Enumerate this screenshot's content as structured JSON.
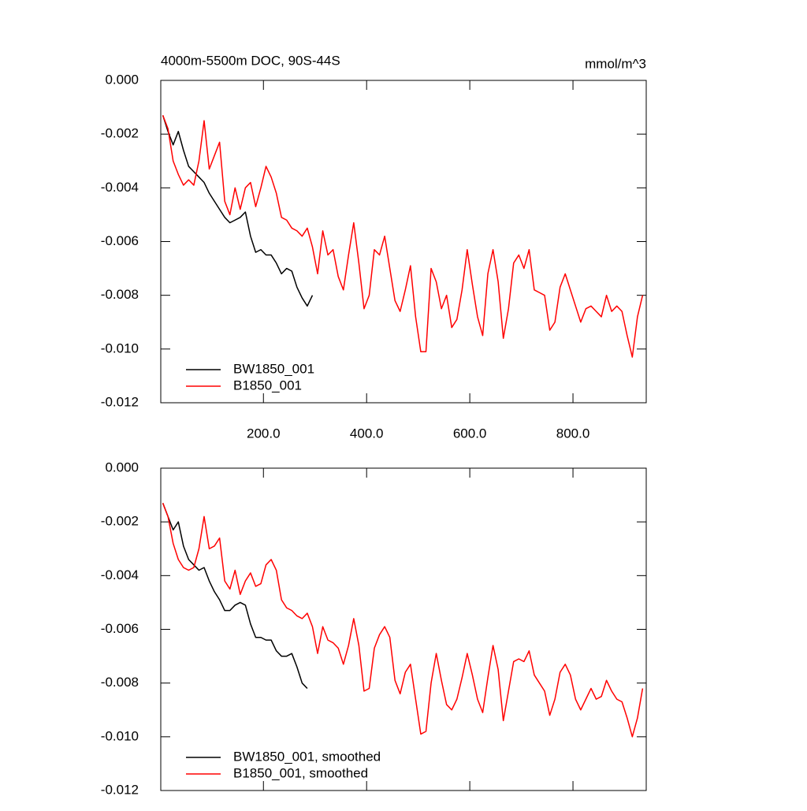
{
  "chart_data": [
    {
      "type": "line",
      "title": "4000m-5500m DOC, 90S-44S",
      "units": "mmol/m^3",
      "xlim": [
        1,
        942
      ],
      "ylim": [
        -0.012,
        0
      ],
      "xticks": [
        {
          "value": 200,
          "label": "200.0"
        },
        {
          "value": 400,
          "label": "400.0"
        },
        {
          "value": 600,
          "label": "600.0"
        },
        {
          "value": 800,
          "label": "800.0"
        }
      ],
      "yticks": [
        {
          "value": 0,
          "label": "0.000"
        },
        {
          "value": -0.002,
          "label": "-0.002"
        },
        {
          "value": -0.004,
          "label": "-0.004"
        },
        {
          "value": -0.006,
          "label": "-0.006"
        },
        {
          "value": -0.008,
          "label": "-0.008"
        },
        {
          "value": -0.01,
          "label": "-0.010"
        },
        {
          "value": -0.012,
          "label": "-0.012"
        }
      ],
      "legend": "lower-left",
      "x": [
        5,
        15,
        25,
        35,
        45,
        55,
        65,
        75,
        85,
        95,
        105,
        115,
        125,
        135,
        145,
        155,
        165,
        175,
        185,
        195,
        205,
        215,
        225,
        235,
        245,
        255,
        265,
        275,
        285,
        295,
        305,
        315,
        325,
        335,
        345,
        355,
        365,
        375,
        385,
        395,
        405,
        415,
        425,
        435,
        445,
        455,
        465,
        475,
        485,
        495,
        505,
        515,
        525,
        535,
        545,
        555,
        565,
        575,
        585,
        595,
        605,
        615,
        625,
        635,
        645,
        655,
        665,
        675,
        685,
        695,
        705,
        715,
        725,
        735,
        745,
        755,
        765,
        775,
        785,
        795,
        805,
        815,
        825,
        835,
        845,
        855,
        865,
        875,
        885,
        895,
        905,
        915,
        925,
        935
      ],
      "series": [
        {
          "name": "BW1850_001",
          "color": "#000000",
          "values": [
            -0.0013,
            -0.0019,
            -0.0024,
            -0.0019,
            -0.0026,
            -0.0032,
            -0.0034,
            -0.0036,
            -0.0038,
            -0.0042,
            -0.0045,
            -0.0048,
            -0.0051,
            -0.0053,
            -0.0052,
            -0.0051,
            -0.0049,
            -0.0058,
            -0.0064,
            -0.0063,
            -0.0065,
            -0.0065,
            -0.0068,
            -0.0072,
            -0.007,
            -0.0071,
            -0.0077,
            -0.0081,
            -0.0084,
            -0.008,
            null,
            null,
            null,
            null,
            null,
            null,
            null,
            null,
            null,
            null,
            null,
            null,
            null,
            null,
            null,
            null,
            null,
            null,
            null,
            null,
            null,
            null,
            null,
            null,
            null,
            null,
            null,
            null,
            null,
            null,
            null,
            null,
            null,
            null,
            null,
            null,
            null,
            null,
            null,
            null,
            null,
            null,
            null,
            null,
            null,
            null,
            null,
            null,
            null,
            null,
            null,
            null,
            null,
            null,
            null,
            null,
            null,
            null,
            null,
            null,
            null,
            null,
            null,
            null
          ]
        },
        {
          "name": "B1850_001",
          "color": "#ff0000",
          "values": [
            -0.0013,
            -0.0018,
            -0.003,
            -0.0035,
            -0.0039,
            -0.0037,
            -0.0039,
            -0.003,
            -0.0015,
            -0.0033,
            -0.0028,
            -0.0023,
            -0.0045,
            -0.005,
            -0.004,
            -0.0048,
            -0.004,
            -0.0038,
            -0.0047,
            -0.004,
            -0.0032,
            -0.0036,
            -0.0042,
            -0.0051,
            -0.0052,
            -0.0055,
            -0.0056,
            -0.0058,
            -0.0055,
            -0.0062,
            -0.0072,
            -0.0056,
            -0.0065,
            -0.0063,
            -0.0073,
            -0.0078,
            -0.0065,
            -0.0053,
            -0.0068,
            -0.0085,
            -0.008,
            -0.0063,
            -0.0065,
            -0.0058,
            -0.007,
            -0.0082,
            -0.0086,
            -0.0078,
            -0.0069,
            -0.0088,
            -0.0101,
            -0.0101,
            -0.007,
            -0.0075,
            -0.0085,
            -0.008,
            -0.0092,
            -0.0089,
            -0.0078,
            -0.0063,
            -0.0076,
            -0.0088,
            -0.0095,
            -0.0072,
            -0.0063,
            -0.0075,
            -0.0096,
            -0.0085,
            -0.0068,
            -0.0065,
            -0.007,
            -0.0063,
            -0.0078,
            -0.0079,
            -0.008,
            -0.0093,
            -0.009,
            -0.0077,
            -0.0072,
            -0.0078,
            -0.0084,
            -0.009,
            -0.0085,
            -0.0084,
            -0.0086,
            -0.0088,
            -0.008,
            -0.0086,
            -0.0084,
            -0.0086,
            -0.0095,
            -0.0103,
            -0.0088,
            -0.008
          ]
        }
      ]
    },
    {
      "type": "line",
      "xlim": [
        1,
        942
      ],
      "ylim": [
        -0.012,
        0
      ],
      "yticks": [
        {
          "value": 0,
          "label": "0.000"
        },
        {
          "value": -0.002,
          "label": "-0.002"
        },
        {
          "value": -0.004,
          "label": "-0.004"
        },
        {
          "value": -0.006,
          "label": "-0.006"
        },
        {
          "value": -0.008,
          "label": "-0.008"
        },
        {
          "value": -0.01,
          "label": "-0.010"
        },
        {
          "value": -0.012,
          "label": "-0.012"
        }
      ],
      "legend": "lower-left",
      "x": [
        5,
        15,
        25,
        35,
        45,
        55,
        65,
        75,
        85,
        95,
        105,
        115,
        125,
        135,
        145,
        155,
        165,
        175,
        185,
        195,
        205,
        215,
        225,
        235,
        245,
        255,
        265,
        275,
        285,
        295,
        305,
        315,
        325,
        335,
        345,
        355,
        365,
        375,
        385,
        395,
        405,
        415,
        425,
        435,
        445,
        455,
        465,
        475,
        485,
        495,
        505,
        515,
        525,
        535,
        545,
        555,
        565,
        575,
        585,
        595,
        605,
        615,
        625,
        635,
        645,
        655,
        665,
        675,
        685,
        695,
        705,
        715,
        725,
        735,
        745,
        755,
        765,
        775,
        785,
        795,
        805,
        815,
        825,
        835,
        845,
        855,
        865,
        875,
        885,
        895,
        905,
        915,
        925,
        935
      ],
      "series": [
        {
          "name": "BW1850_001, smoothed",
          "color": "#000000",
          "values": [
            -0.0013,
            -0.0018,
            -0.0023,
            -0.002,
            -0.0029,
            -0.0034,
            -0.0036,
            -0.0038,
            -0.0037,
            -0.0042,
            -0.0046,
            -0.0049,
            -0.0053,
            -0.0053,
            -0.0051,
            -0.005,
            -0.0051,
            -0.0058,
            -0.0063,
            -0.0063,
            -0.0064,
            -0.0064,
            -0.0068,
            -0.007,
            -0.007,
            -0.0069,
            -0.0074,
            -0.008,
            -0.0082,
            null,
            null,
            null,
            null,
            null,
            null,
            null,
            null,
            null,
            null,
            null,
            null,
            null,
            null,
            null,
            null,
            null,
            null,
            null,
            null,
            null,
            null,
            null,
            null,
            null,
            null,
            null,
            null,
            null,
            null,
            null,
            null,
            null,
            null,
            null,
            null,
            null,
            null,
            null,
            null,
            null,
            null,
            null,
            null,
            null,
            null,
            null,
            null,
            null,
            null,
            null,
            null,
            null,
            null,
            null,
            null,
            null,
            null,
            null,
            null,
            null,
            null,
            null,
            null,
            null
          ]
        },
        {
          "name": "B1850_001, smoothed",
          "color": "#ff0000",
          "values": [
            -0.0013,
            -0.0018,
            -0.0028,
            -0.0034,
            -0.0037,
            -0.0038,
            -0.0037,
            -0.003,
            -0.0018,
            -0.003,
            -0.0029,
            -0.0026,
            -0.0042,
            -0.0045,
            -0.0038,
            -0.0047,
            -0.0042,
            -0.0039,
            -0.0044,
            -0.0043,
            -0.0036,
            -0.0034,
            -0.0038,
            -0.0049,
            -0.0052,
            -0.0053,
            -0.0055,
            -0.0056,
            -0.0054,
            -0.0059,
            -0.0069,
            -0.0059,
            -0.0064,
            -0.0065,
            -0.0067,
            -0.0073,
            -0.0066,
            -0.0056,
            -0.0066,
            -0.0083,
            -0.0082,
            -0.0067,
            -0.0062,
            -0.0059,
            -0.0063,
            -0.0079,
            -0.0084,
            -0.0076,
            -0.0073,
            -0.0086,
            -0.0099,
            -0.0098,
            -0.008,
            -0.0069,
            -0.0079,
            -0.0088,
            -0.009,
            -0.0086,
            -0.0078,
            -0.0069,
            -0.0077,
            -0.0086,
            -0.0091,
            -0.0078,
            -0.0066,
            -0.0075,
            -0.0094,
            -0.0083,
            -0.0072,
            -0.0071,
            -0.0072,
            -0.0068,
            -0.0077,
            -0.008,
            -0.0083,
            -0.0092,
            -0.0086,
            -0.0076,
            -0.0073,
            -0.0077,
            -0.0086,
            -0.009,
            -0.0086,
            -0.0082,
            -0.0086,
            -0.0085,
            -0.0079,
            -0.0083,
            -0.0086,
            -0.0087,
            -0.0093,
            -0.01,
            -0.0093,
            -0.0082
          ]
        }
      ]
    }
  ]
}
